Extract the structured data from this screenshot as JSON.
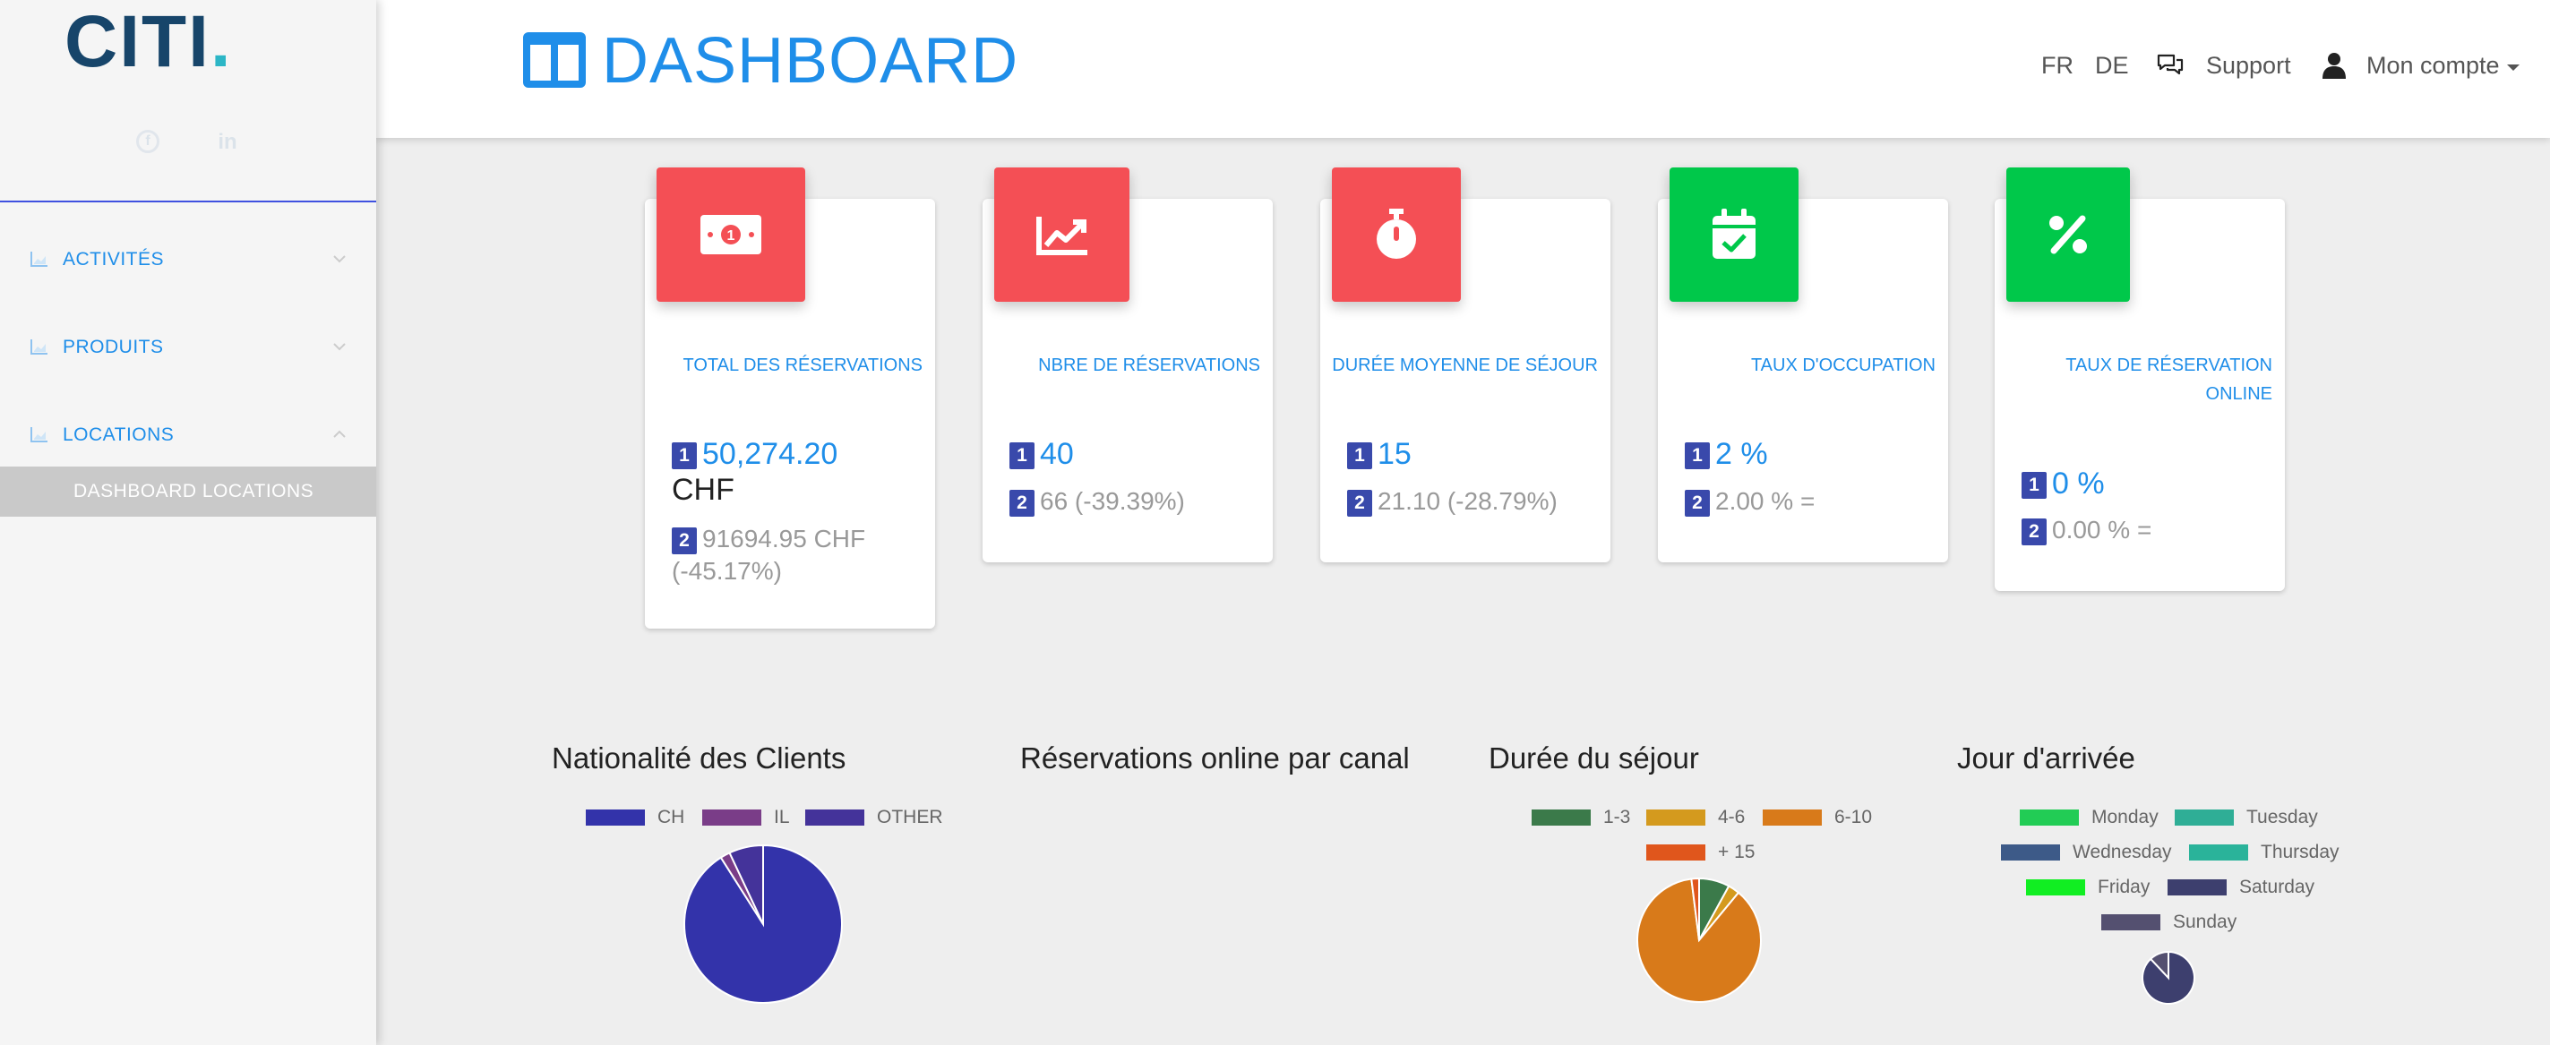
{
  "brand": {
    "logo_text": "CITI",
    "logo_dot": ".",
    "logo_color": "#17456a",
    "accent": "#1f8ee9"
  },
  "sidebar": {
    "social": [
      "facebook-icon",
      "linkedin-icon"
    ],
    "items": [
      {
        "label": "ACTIVITÉS",
        "expanded": false
      },
      {
        "label": "PRODUITS",
        "expanded": false
      },
      {
        "label": "LOCATIONS",
        "expanded": true
      }
    ],
    "sub_item": "DASHBOARD LOCATIONS"
  },
  "header": {
    "title": "DASHBOARD",
    "lang_fr": "FR",
    "lang_de": "DE",
    "support": "Support",
    "account": "Mon compte"
  },
  "cards": [
    {
      "label": "TOTAL DES RÉSERVATIONS",
      "b1": "1",
      "main": "50,274.20",
      "main_unit": "CHF",
      "b2": "2",
      "sub": "91694.95 CHF (-45.17%)",
      "color": "#f44f55",
      "icon": "money-icon"
    },
    {
      "label": "NBRE DE RÉSERVATIONS",
      "b1": "1",
      "main": "40",
      "b2": "2",
      "sub": "66 (-39.39%)",
      "color": "#f44f55",
      "icon": "chart-line-icon"
    },
    {
      "label": "DURÉE MOYENNE DE SÉJOUR",
      "b1": "1",
      "main": "15",
      "b2": "2",
      "sub": "21.10 (-28.79%)",
      "color": "#f44f55",
      "icon": "stopwatch-icon"
    },
    {
      "label": "TAUX D'OCCUPATION",
      "b1": "1",
      "main": "2 %",
      "b2": "2",
      "sub": "2.00 % =",
      "color": "#00c84a",
      "icon": "calendar-check-icon"
    },
    {
      "label_line1": "TAUX DE RÉSERVATION",
      "label_line2": "ONLINE",
      "b1": "1",
      "main": "0 %",
      "b2": "2",
      "sub": "0.00 % =",
      "color": "#00c84a",
      "icon": "percent-icon"
    }
  ],
  "chart_titles": [
    "Nationalité des Clients",
    "Réservations online par canal",
    "Durée du séjour",
    "Jour d'arrivée"
  ],
  "chart_data": [
    {
      "type": "pie",
      "title": "Nationalité des Clients",
      "legend": "top",
      "categories": [
        "CH",
        "IL",
        "OTHER"
      ],
      "values": [
        91,
        2,
        7
      ],
      "colors": [
        "#3333aa",
        "#7a3d88",
        "#44339a"
      ]
    },
    {
      "type": "pie",
      "title": "Réservations online par canal",
      "categories": [],
      "values": []
    },
    {
      "type": "pie",
      "title": "Durée du séjour",
      "legend": "top",
      "categories": [
        "1-3",
        "4-6",
        "6-10",
        "+ 15"
      ],
      "values": [
        8,
        3,
        87,
        2
      ],
      "colors": [
        "#3b7a4a",
        "#d49a1e",
        "#d87a1a",
        "#e0561c"
      ]
    },
    {
      "type": "pie",
      "title": "Jour d'arrivée",
      "legend": "top",
      "categories": [
        "Monday",
        "Tuesday",
        "Wednesday",
        "Thursday",
        "Friday",
        "Saturday",
        "Sunday"
      ],
      "values": [
        0,
        0,
        0,
        0,
        0,
        88,
        12
      ],
      "colors": [
        "#22cc55",
        "#2fae96",
        "#3d5a88",
        "#2ab39a",
        "#11ee22",
        "#3d3f6e",
        "#545070"
      ]
    }
  ]
}
